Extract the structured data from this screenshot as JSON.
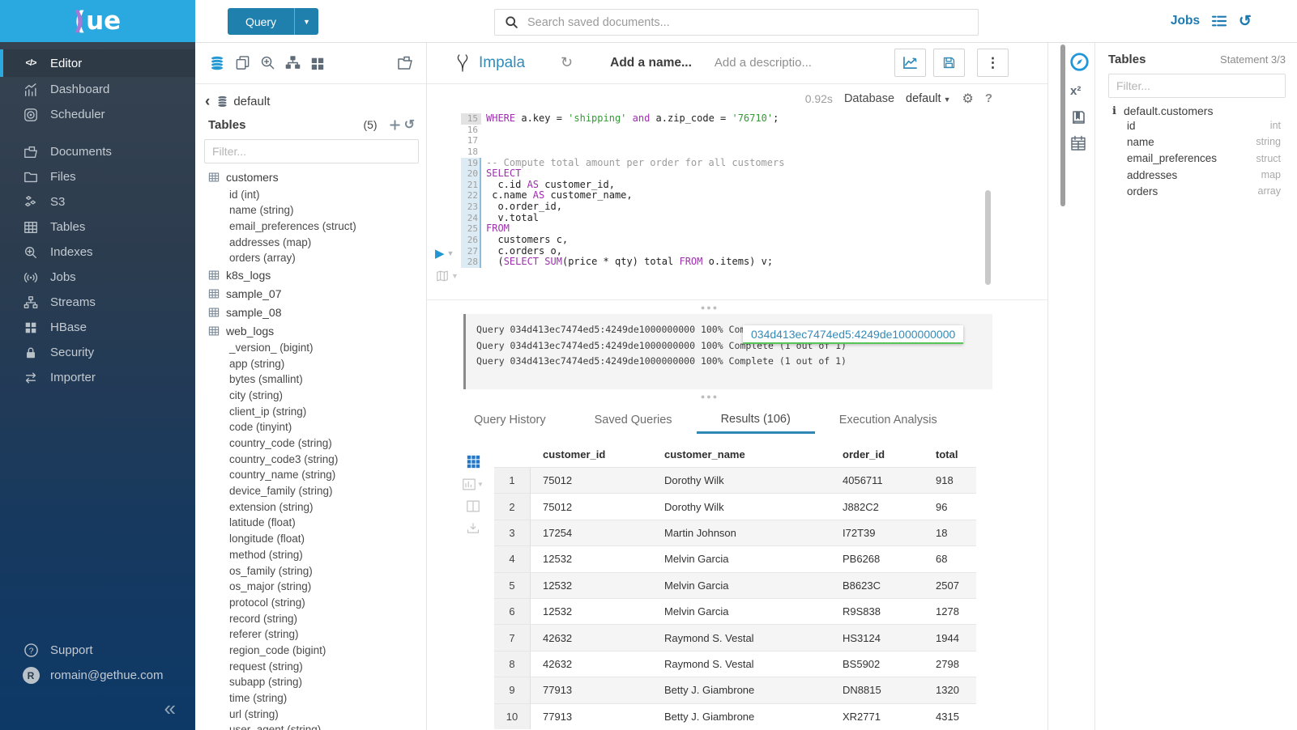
{
  "colors": {
    "brand_blue": "#338bb8",
    "bright_blue": "#29a9e0",
    "button_blue": "#1f80ad",
    "tooltip_green": "#58c558",
    "keyword_purple": "#9d2fad",
    "string_green": "#339933"
  },
  "topbar": {
    "query_button": "Query",
    "search_placeholder": "Search saved documents...",
    "jobs_label": "Jobs"
  },
  "sidebar": {
    "logo_text": "ue",
    "items": [
      {
        "label": "Editor"
      },
      {
        "label": "Dashboard"
      },
      {
        "label": "Scheduler"
      },
      {
        "label": "Documents"
      },
      {
        "label": "Files"
      },
      {
        "label": "S3"
      },
      {
        "label": "Tables"
      },
      {
        "label": "Indexes"
      },
      {
        "label": "Jobs"
      },
      {
        "label": "Streams"
      },
      {
        "label": "HBase"
      },
      {
        "label": "Security"
      },
      {
        "label": "Importer"
      }
    ],
    "footer": {
      "support": "Support",
      "user": "romain@gethue.com"
    }
  },
  "left_assist": {
    "breadcrumb": "default",
    "tables_label": "Tables",
    "count": "(5)",
    "filter_placeholder": "Filter...",
    "tables": [
      {
        "name": "customers",
        "columns": [
          "id (int)",
          "name (string)",
          "email_preferences (struct)",
          "addresses (map)",
          "orders (array)"
        ]
      },
      {
        "name": "k8s_logs",
        "columns": []
      },
      {
        "name": "sample_07",
        "columns": []
      },
      {
        "name": "sample_08",
        "columns": []
      },
      {
        "name": "web_logs",
        "columns": [
          "_version_ (bigint)",
          "app (string)",
          "bytes (smallint)",
          "city (string)",
          "client_ip (string)",
          "code (tinyint)",
          "country_code (string)",
          "country_code3 (string)",
          "country_name (string)",
          "device_family (string)",
          "extension (string)",
          "latitude (float)",
          "longitude (float)",
          "method (string)",
          "os_family (string)",
          "os_major (string)",
          "protocol (string)",
          "record (string)",
          "referer (string)",
          "region_code (bigint)",
          "request (string)",
          "subapp (string)",
          "time (string)",
          "url (string)",
          "user_agent (string)"
        ]
      }
    ]
  },
  "editor": {
    "engine": "Impala",
    "name_placeholder": "Add a name...",
    "description_placeholder": "Add a descriptio...",
    "duration": "0.92s",
    "database_label": "Database",
    "database_value": "default",
    "code_lines": [
      {
        "n": "15",
        "hl": "cursor",
        "seg": [
          [
            "k",
            "WHERE"
          ],
          [
            "t",
            " a.key = "
          ],
          [
            "s",
            "'shipping'"
          ],
          [
            "t",
            " "
          ],
          [
            "k",
            "and"
          ],
          [
            "t",
            " a.zip_code = "
          ],
          [
            "s",
            "'76710'"
          ],
          [
            "t",
            ";"
          ]
        ]
      },
      {
        "n": "16",
        "seg": []
      },
      {
        "n": "17",
        "seg": []
      },
      {
        "n": "18",
        "seg": []
      },
      {
        "n": "19",
        "hl": "stmt",
        "seg": [
          [
            "c",
            "-- Compute total amount per order for all customers"
          ]
        ]
      },
      {
        "n": "20",
        "hl": "stmt",
        "seg": [
          [
            "k",
            "SELECT"
          ]
        ]
      },
      {
        "n": "21",
        "hl": "stmt",
        "seg": [
          [
            "t",
            "  c.id "
          ],
          [
            "k",
            "AS"
          ],
          [
            "t",
            " customer_id,"
          ]
        ]
      },
      {
        "n": "22",
        "hl": "stmt",
        "seg": [
          [
            "t",
            " c.name "
          ],
          [
            "k",
            "AS"
          ],
          [
            "t",
            " customer_name,"
          ]
        ]
      },
      {
        "n": "23",
        "hl": "stmt",
        "seg": [
          [
            "t",
            "  o.order_id,"
          ]
        ]
      },
      {
        "n": "24",
        "hl": "stmt",
        "seg": [
          [
            "t",
            "  v.total"
          ]
        ]
      },
      {
        "n": "25",
        "hl": "stmt",
        "seg": [
          [
            "k",
            "FROM"
          ]
        ]
      },
      {
        "n": "26",
        "hl": "stmt",
        "seg": [
          [
            "t",
            "  customers c,"
          ]
        ]
      },
      {
        "n": "27",
        "hl": "stmt",
        "seg": [
          [
            "t",
            "  c.orders o,"
          ]
        ]
      },
      {
        "n": "28",
        "hl": "stmt",
        "seg": [
          [
            "t",
            "  ("
          ],
          [
            "k",
            "SELECT"
          ],
          [
            "t",
            " "
          ],
          [
            "k",
            "SUM"
          ],
          [
            "t",
            "(price * qty) total "
          ],
          [
            "k",
            "FROM"
          ],
          [
            "t",
            " o.items) v;"
          ]
        ]
      }
    ]
  },
  "logs": {
    "lines": [
      "Query 034d413ec7474ed5:4249de1000000000 100% Complete (1 out of 1)",
      "Query 034d413ec7474ed5:4249de1000000000 100% Complete (1 out of 1)",
      "Query 034d413ec7474ed5:4249de1000000000 100% Complete (1 out of 1)"
    ],
    "tooltip": "034d413ec7474ed5:4249de1000000000"
  },
  "result_tabs": {
    "tabs": [
      {
        "label": "Query History"
      },
      {
        "label": "Saved Queries"
      },
      {
        "label": "Results (106)",
        "active": true
      },
      {
        "label": "Execution Analysis"
      }
    ]
  },
  "results": {
    "headers": [
      "",
      "customer_id",
      "customer_name",
      "order_id",
      "total"
    ],
    "rows": [
      [
        "1",
        "75012",
        "Dorothy Wilk",
        "4056711",
        "918"
      ],
      [
        "2",
        "75012",
        "Dorothy Wilk",
        "J882C2",
        "96"
      ],
      [
        "3",
        "17254",
        "Martin Johnson",
        "I72T39",
        "18"
      ],
      [
        "4",
        "12532",
        "Melvin Garcia",
        "PB6268",
        "68"
      ],
      [
        "5",
        "12532",
        "Melvin Garcia",
        "B8623C",
        "2507"
      ],
      [
        "6",
        "12532",
        "Melvin Garcia",
        "R9S838",
        "1278"
      ],
      [
        "7",
        "42632",
        "Raymond S. Vestal",
        "HS3124",
        "1944"
      ],
      [
        "8",
        "42632",
        "Raymond S. Vestal",
        "BS5902",
        "2798"
      ],
      [
        "9",
        "77913",
        "Betty J. Giambrone",
        "DN8815",
        "1320"
      ],
      [
        "10",
        "77913",
        "Betty J. Giambrone",
        "XR2771",
        "4315"
      ]
    ]
  },
  "right_assist": {
    "title": "Tables",
    "statement": "Statement 3/3",
    "filter_placeholder": "Filter...",
    "table_name": "default.customers",
    "columns": [
      {
        "name": "id",
        "type": "int"
      },
      {
        "name": "name",
        "type": "string"
      },
      {
        "name": "email_preferences",
        "type": "struct"
      },
      {
        "name": "addresses",
        "type": "map"
      },
      {
        "name": "orders",
        "type": "array"
      }
    ]
  }
}
